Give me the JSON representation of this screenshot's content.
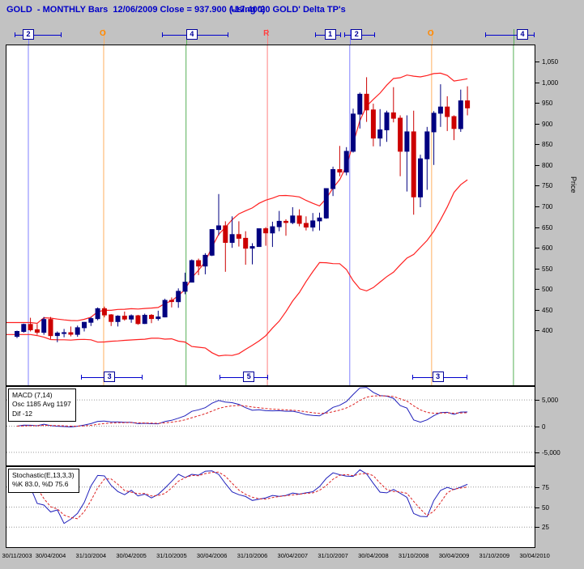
{
  "titlebar": {
    "left": "GOLD  - MONTHLY Bars  12/06/2009 Close = 937.900 (-17.400)",
    "right": "Using '20 GOLD' Delta TP's",
    "color": "#0000c8"
  },
  "markers": {
    "top": [
      {
        "label": "2",
        "type": "box",
        "x": 0.0414,
        "line": [
          0.015,
          0.105
        ]
      },
      {
        "label": "O",
        "type": "letter",
        "color": "#ff8800",
        "x": 0.184
      },
      {
        "label": "4",
        "type": "box",
        "x": 0.351,
        "line": [
          0.295,
          0.42
        ]
      },
      {
        "label": "R",
        "type": "letter",
        "color": "#ff4040",
        "x": 0.494
      },
      {
        "label": "1",
        "type": "box",
        "x": 0.613,
        "line": [
          0.585,
          0.633
        ]
      },
      {
        "label": "2",
        "type": "box",
        "x": 0.663,
        "line": [
          0.64,
          0.698
        ]
      },
      {
        "label": "O",
        "type": "letter",
        "color": "#ff8800",
        "x": 0.805
      },
      {
        "label": "4",
        "type": "box",
        "x": 0.977,
        "line": [
          0.906,
          1.0
        ]
      }
    ],
    "bottom": [
      {
        "label": "3",
        "x": 0.195,
        "line": [
          0.141,
          0.258
        ]
      },
      {
        "label": "5",
        "x": 0.459,
        "line": [
          0.404,
          0.495
        ]
      },
      {
        "label": "3",
        "x": 0.817,
        "line": [
          0.769,
          0.872
        ]
      }
    ],
    "verticals": [
      {
        "x": 0.0414,
        "color": "#8080ff"
      },
      {
        "x": 0.184,
        "color": "#ffb060"
      },
      {
        "x": 0.34,
        "color": "#55b055"
      },
      {
        "x": 0.494,
        "color": "#ff8080"
      },
      {
        "x": 0.65,
        "color": "#8080ff"
      },
      {
        "x": 0.805,
        "color": "#ffb060"
      },
      {
        "x": 0.96,
        "color": "#55b055"
      }
    ]
  },
  "chart_data": {
    "type": "candlestick",
    "symbol": "GOLD",
    "timeframe": "MONTHLY",
    "as_of": "12/06/2009",
    "close": 937.9,
    "change": -17.4,
    "first_bar_month": "2003-11",
    "colors": {
      "up": "#000080",
      "down": "#cc0000",
      "band": "#ff2020",
      "macd_osc": "#2020bb",
      "macd_avg": "#dd2222",
      "stoch_k": "#2020bb",
      "stoch_d": "#dd2222"
    },
    "ohlc": [
      [
        386,
        400,
        382,
        398
      ],
      [
        398,
        417,
        395,
        415
      ],
      [
        415,
        431,
        398,
        402
      ],
      [
        402,
        416,
        390,
        396
      ],
      [
        396,
        433,
        390,
        427
      ],
      [
        427,
        433,
        380,
        388
      ],
      [
        388,
        398,
        372,
        394
      ],
      [
        394,
        404,
        384,
        395
      ],
      [
        395,
        410,
        386,
        391
      ],
      [
        391,
        412,
        385,
        407
      ],
      [
        407,
        421,
        398,
        420
      ],
      [
        420,
        433,
        411,
        429
      ],
      [
        429,
        456,
        425,
        453
      ],
      [
        453,
        458,
        432,
        438
      ],
      [
        438,
        440,
        411,
        422
      ],
      [
        422,
        437,
        410,
        435
      ],
      [
        435,
        446,
        424,
        428
      ],
      [
        428,
        439,
        419,
        436
      ],
      [
        436,
        438,
        414,
        417
      ],
      [
        417,
        441,
        416,
        437
      ],
      [
        437,
        440,
        418,
        429
      ],
      [
        429,
        448,
        424,
        433
      ],
      [
        433,
        477,
        432,
        473
      ],
      [
        473,
        480,
        456,
        470
      ],
      [
        470,
        502,
        455,
        495
      ],
      [
        495,
        540,
        488,
        517
      ],
      [
        517,
        572,
        517,
        569
      ],
      [
        569,
        574,
        534,
        556
      ],
      [
        556,
        587,
        536,
        582
      ],
      [
        582,
        645,
        580,
        644
      ],
      [
        644,
        730,
        630,
        653
      ],
      [
        653,
        664,
        542,
        613
      ],
      [
        613,
        676,
        600,
        632
      ],
      [
        632,
        664,
        603,
        623
      ],
      [
        623,
        640,
        559,
        599
      ],
      [
        599,
        611,
        560,
        603
      ],
      [
        603,
        646,
        603,
        646
      ],
      [
        646,
        650,
        605,
        636
      ],
      [
        636,
        663,
        602,
        651
      ],
      [
        651,
        689,
        640,
        664
      ],
      [
        664,
        669,
        629,
        661
      ],
      [
        661,
        698,
        657,
        677
      ],
      [
        677,
        693,
        652,
        659
      ],
      [
        659,
        676,
        642,
        650
      ],
      [
        650,
        684,
        640,
        665
      ],
      [
        665,
        685,
        642,
        672
      ],
      [
        672,
        743,
        670,
        743
      ],
      [
        743,
        796,
        725,
        789
      ],
      [
        789,
        846,
        773,
        783
      ],
      [
        783,
        843,
        775,
        833
      ],
      [
        833,
        936,
        830,
        923
      ],
      [
        923,
        975,
        888,
        971
      ],
      [
        971,
        1012,
        904,
        933
      ],
      [
        933,
        948,
        845,
        865
      ],
      [
        865,
        935,
        845,
        885
      ],
      [
        885,
        931,
        856,
        926
      ],
      [
        926,
        988,
        903,
        913
      ],
      [
        913,
        920,
        773,
        833
      ],
      [
        833,
        920,
        736,
        880
      ],
      [
        880,
        931,
        680,
        723
      ],
      [
        723,
        825,
        698,
        815
      ],
      [
        815,
        892,
        740,
        880
      ],
      [
        880,
        930,
        800,
        925
      ],
      [
        925,
        995,
        892,
        940
      ],
      [
        940,
        966,
        882,
        917
      ],
      [
        917,
        920,
        860,
        888
      ],
      [
        888,
        982,
        880,
        955
      ],
      [
        955,
        990,
        920,
        938
      ]
    ],
    "overlays": [
      {
        "name": "upper-volatility-band",
        "rule": "SMA20(close) + 2*stdev20",
        "color": "#ff2020"
      },
      {
        "name": "lower-volatility-band",
        "rule": "SMA20(close) - 2*stdev20",
        "color": "#ff2020"
      }
    ],
    "price_axis": {
      "title": "Price",
      "ticks": [
        {
          "v": 1050,
          "label": "1,050"
        },
        {
          "v": 1000,
          "label": "1,000"
        },
        {
          "v": 950,
          "label": "950"
        },
        {
          "v": 900,
          "label": "900"
        },
        {
          "v": 850,
          "label": "850"
        },
        {
          "v": 800,
          "label": "800"
        },
        {
          "v": 750,
          "label": "750"
        },
        {
          "v": 700,
          "label": "700"
        },
        {
          "v": 650,
          "label": "650"
        },
        {
          "v": 600,
          "label": "600"
        },
        {
          "v": 550,
          "label": "550"
        },
        {
          "v": 500,
          "label": "500"
        },
        {
          "v": 450,
          "label": "450"
        },
        {
          "v": 400,
          "label": "400"
        }
      ]
    },
    "x_axis": {
      "labels": [
        {
          "m": 0,
          "text": "30/11/2003"
        },
        {
          "m": 5,
          "text": "30/04/2004"
        },
        {
          "m": 11,
          "text": "31/10/2004"
        },
        {
          "m": 17,
          "text": "30/04/2005"
        },
        {
          "m": 23,
          "text": "31/10/2005"
        },
        {
          "m": 29,
          "text": "30/04/2006"
        },
        {
          "m": 35,
          "text": "31/10/2006"
        },
        {
          "m": 41,
          "text": "30/04/2007"
        },
        {
          "m": 47,
          "text": "31/10/2007"
        },
        {
          "m": 53,
          "text": "30/04/2008"
        },
        {
          "m": 59,
          "text": "31/10/2008"
        },
        {
          "m": 65,
          "text": "30/04/2009"
        },
        {
          "m": 71,
          "text": "31/10/2009"
        },
        {
          "m": 77,
          "text": "30/04/2010"
        }
      ]
    },
    "sub_charts": [
      {
        "name": "MACD",
        "title": "MACD (7,14)",
        "readout_line": "Osc 1185 Avg 1197",
        "dif_line": "Dif -12",
        "fast": 7,
        "slow": 14,
        "range": [
          -7500,
          7500
        ],
        "ticks": [
          {
            "v": 5000,
            "label": "5,000"
          },
          {
            "v": 0,
            "label": "0"
          },
          {
            "v": -5000,
            "label": "-5,000"
          }
        ]
      },
      {
        "name": "Stochastic",
        "title": "Stochastic(E,13,3,3)",
        "readout_line": "%K 83.0, %D 75.6",
        "k_period": 13,
        "smoothing": 3,
        "d_period": 3,
        "range": [
          0,
          100
        ],
        "ticks": [
          {
            "v": 75,
            "label": "75"
          },
          {
            "v": 50,
            "label": "50"
          },
          {
            "v": 25,
            "label": "25"
          }
        ]
      }
    ]
  }
}
